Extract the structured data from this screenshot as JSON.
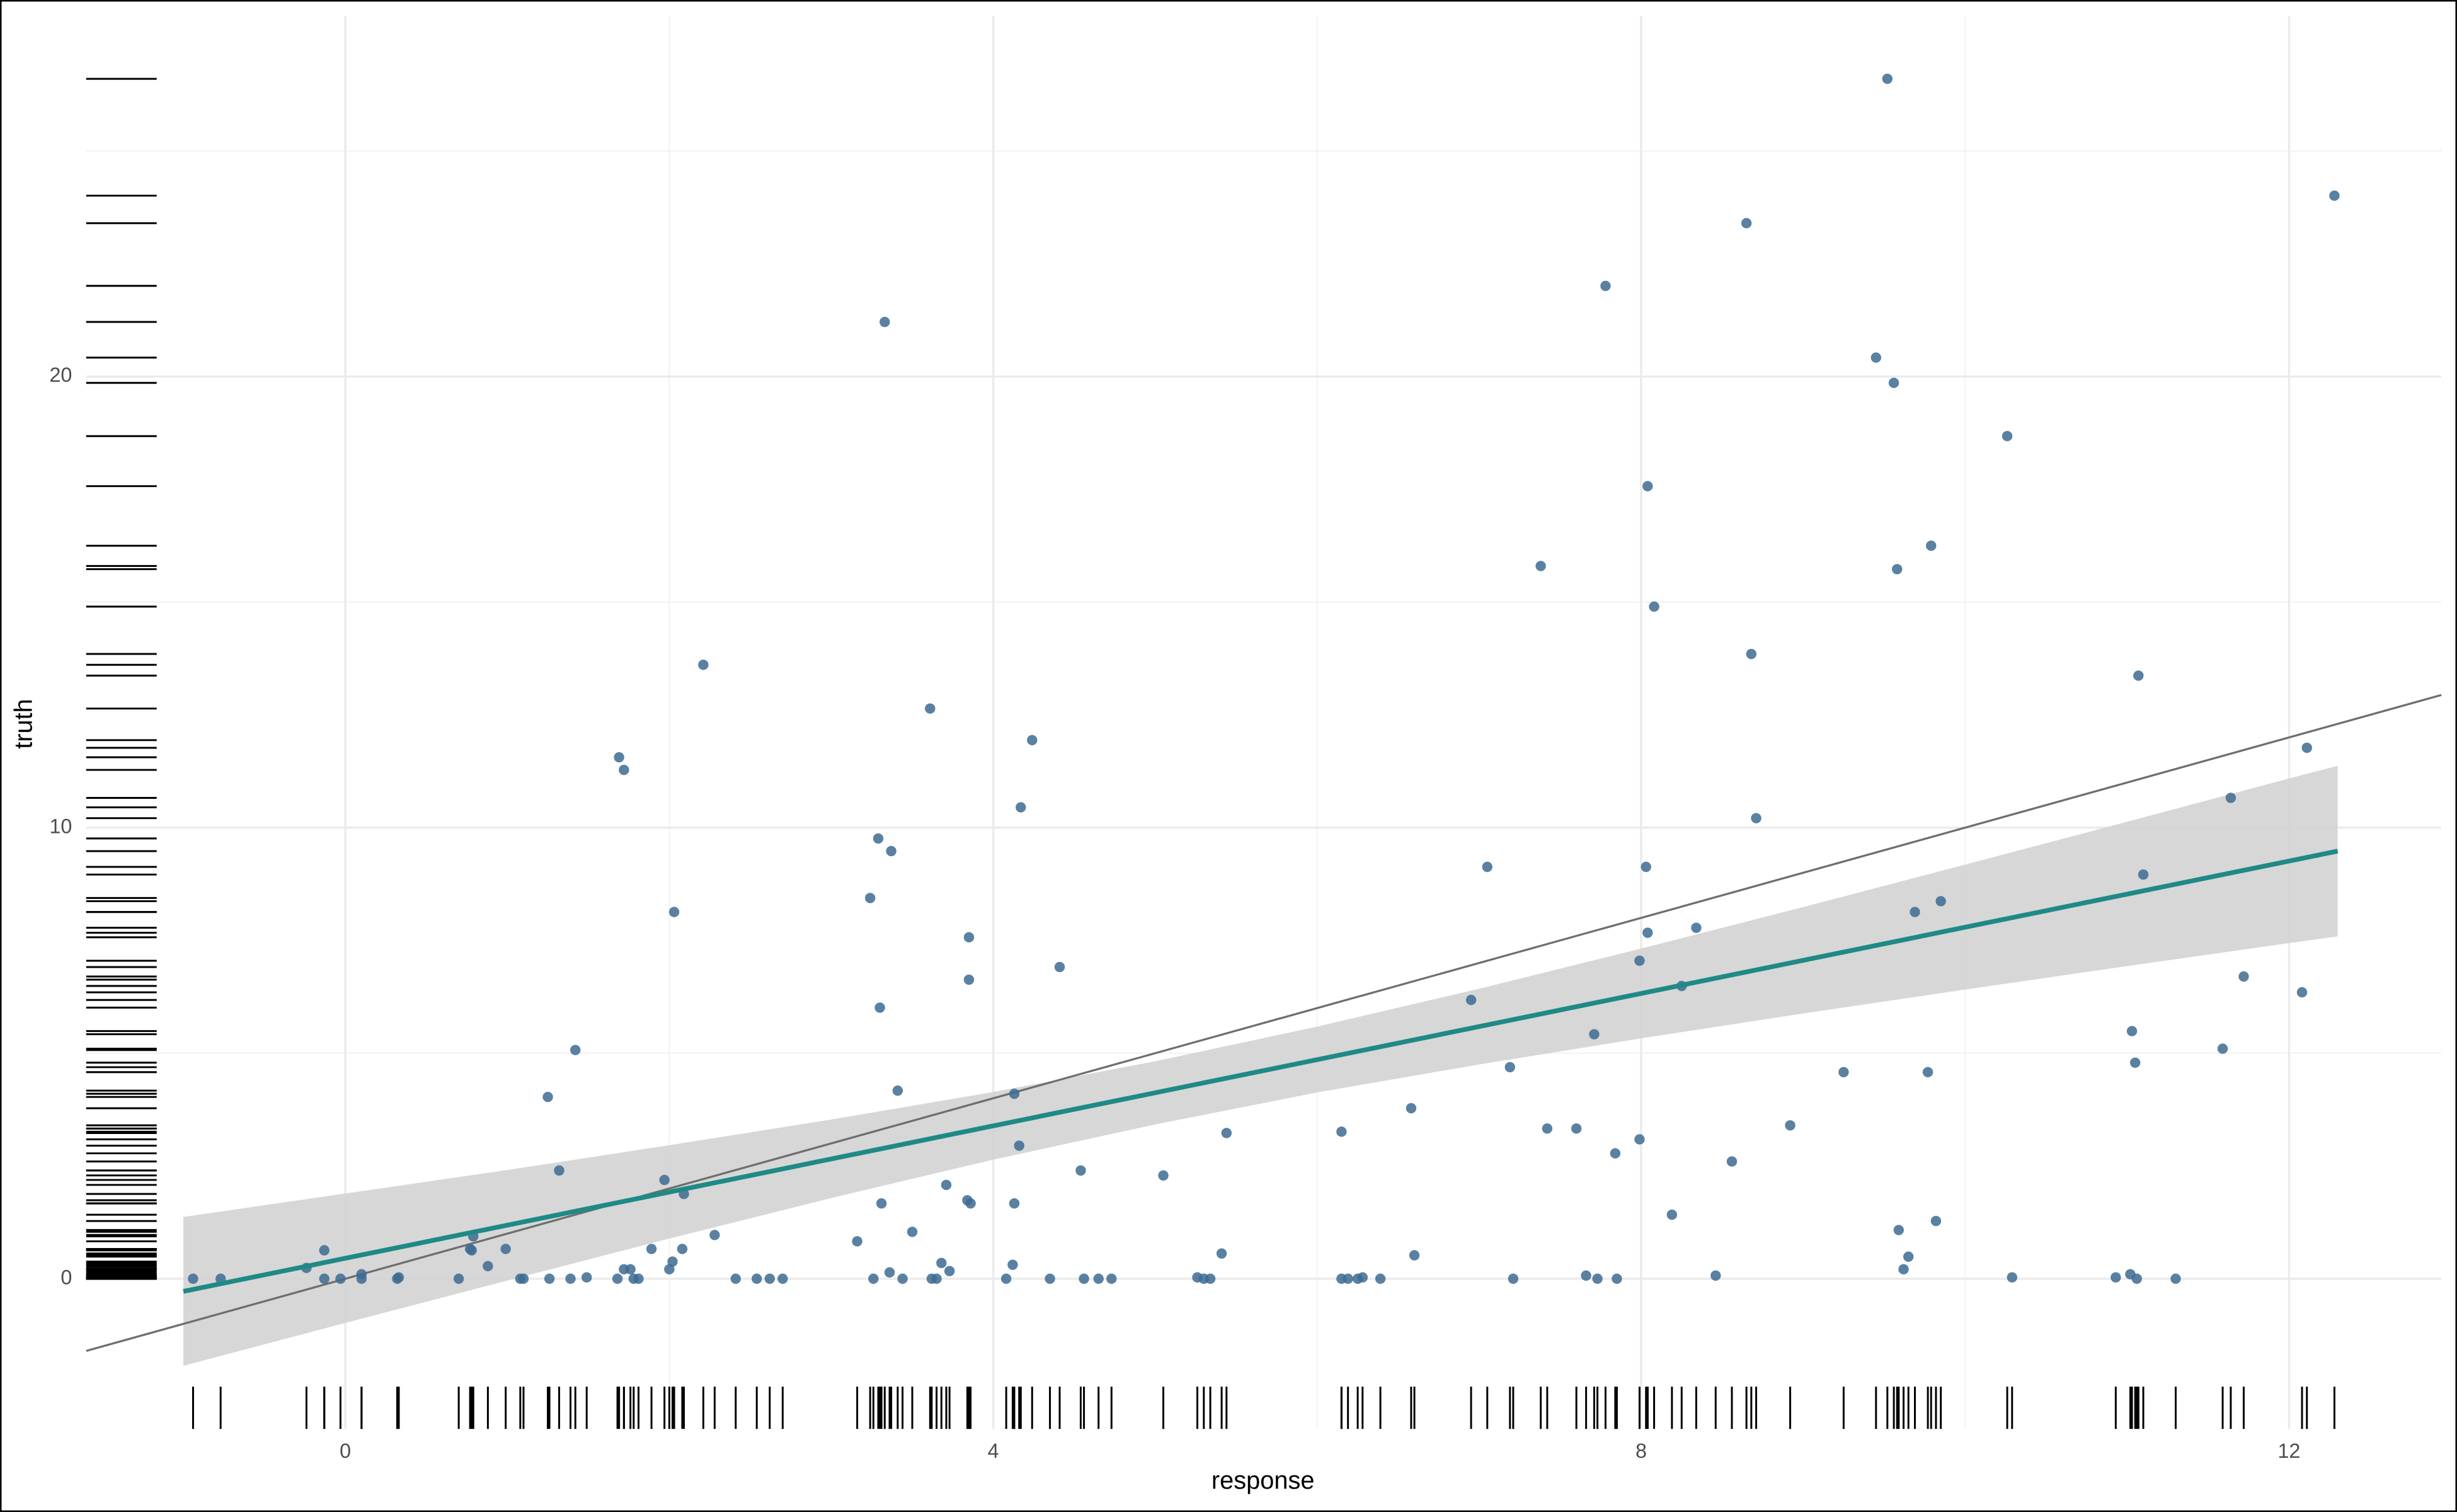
{
  "chart_data": {
    "type": "scatter",
    "x_label": "response",
    "y_label": "truth",
    "x": [
      -0.94,
      -0.77,
      -0.24,
      -0.13,
      -0.13,
      -0.03,
      0.1,
      0.1,
      0.32,
      0.33,
      0.7,
      0.77,
      0.79,
      0.78,
      0.88,
      0.99,
      1.08,
      1.1,
      1.25,
      1.26,
      1.32,
      1.39,
      1.42,
      1.49,
      1.68,
      1.69,
      1.72,
      1.72,
      1.76,
      1.78,
      1.81,
      1.89,
      1.97,
      2.0,
      2.02,
      2.03,
      2.08,
      2.09,
      2.21,
      2.28,
      2.41,
      2.54,
      2.62,
      2.7,
      3.16,
      3.24,
      3.26,
      3.29,
      3.3,
      3.31,
      3.33,
      3.36,
      3.37,
      3.41,
      3.44,
      3.5,
      3.61,
      3.62,
      3.65,
      3.68,
      3.71,
      3.73,
      3.84,
      3.85,
      3.85,
      3.86,
      4.08,
      4.12,
      4.13,
      4.13,
      4.16,
      4.17,
      4.24,
      4.35,
      4.41,
      4.54,
      4.56,
      4.65,
      4.73,
      5.05,
      5.26,
      5.3,
      5.34,
      5.41,
      5.44,
      6.15,
      6.15,
      6.19,
      6.25,
      6.28,
      6.39,
      6.58,
      6.6,
      6.95,
      7.05,
      7.19,
      7.21,
      7.38,
      7.42,
      7.6,
      7.66,
      7.71,
      7.73,
      7.78,
      7.84,
      7.85,
      7.99,
      7.99,
      8.03,
      8.04,
      8.04,
      8.08,
      8.19,
      8.25,
      8.34,
      8.46,
      8.56,
      8.65,
      8.68,
      8.71,
      8.92,
      9.25,
      9.45,
      9.52,
      9.56,
      9.58,
      9.59,
      9.62,
      9.65,
      9.69,
      9.77,
      9.79,
      9.82,
      9.85,
      10.26,
      10.29,
      10.93,
      11.02,
      11.03,
      11.05,
      11.06,
      11.07,
      11.1,
      11.3,
      11.59,
      11.64,
      11.72,
      12.08,
      12.11,
      12.28
    ],
    "values": [
      0,
      0,
      0.24,
      0.63,
      0,
      0,
      0,
      0.1,
      0,
      0.03,
      0,
      0.66,
      0.94,
      0.63,
      0.28,
      0.66,
      0,
      0,
      4.03,
      0,
      2.4,
      0,
      5.07,
      0.03,
      0,
      11.56,
      11.28,
      0.21,
      0.21,
      0,
      0,
      0.66,
      2.19,
      0.21,
      0.38,
      8.13,
      0.66,
      1.88,
      13.61,
      0.97,
      0,
      0,
      0,
      0,
      0.83,
      8.44,
      0,
      9.76,
      6.01,
      1.67,
      21.21,
      0.14,
      9.48,
      4.17,
      0,
      1.04,
      12.64,
      0,
      0,
      0.35,
      2.08,
      0.17,
      1.74,
      7.57,
      6.63,
      1.67,
      0,
      0.31,
      4.1,
      1.67,
      2.95,
      10.45,
      11.94,
      0,
      6.91,
      2.4,
      0,
      0,
      0,
      2.29,
      0.03,
      0,
      0,
      0.56,
      3.23,
      3.26,
      0,
      0,
      0,
      0.03,
      0,
      3.78,
      0.52,
      6.18,
      9.13,
      4.69,
      0,
      15.8,
      3.33,
      3.33,
      0.07,
      5.42,
      0,
      22.01,
      2.78,
      0,
      3.09,
      7.05,
      9.13,
      17.57,
      7.67,
      14.9,
      1.42,
      6.49,
      7.78,
      0.07,
      2.6,
      23.4,
      13.85,
      10.21,
      3.4,
      4.58,
      20.42,
      26.6,
      19.86,
      15.73,
      1.08,
      0.21,
      0.49,
      8.13,
      4.58,
      16.25,
      1.28,
      8.37,
      18.68,
      0.03,
      0.03,
      0.1,
      5.49,
      4.79,
      0,
      13.37,
      8.96,
      0,
      5.1,
      10.66,
      6.7,
      6.35,
      11.77,
      24.01
    ],
    "color": "#3d6b92",
    "fit": {
      "x": [
        -1.0,
        12.3
      ],
      "y": [
        -0.28,
        9.48
      ],
      "color": "#1f8a85"
    },
    "band": {
      "x": [
        -1,
        0,
        1,
        2,
        3,
        4,
        5,
        6,
        7,
        8,
        9,
        10,
        11,
        12,
        12.3
      ],
      "lower": [
        -1.93,
        -0.98,
        -0.04,
        0.89,
        1.79,
        2.64,
        3.42,
        4.13,
        4.75,
        5.33,
        5.88,
        6.41,
        6.93,
        7.44,
        7.59
      ],
      "upper": [
        1.37,
        1.89,
        2.41,
        2.96,
        3.53,
        4.14,
        4.82,
        5.59,
        6.43,
        7.32,
        8.24,
        9.18,
        10.13,
        11.09,
        11.37
      ],
      "color": "#d3d3d3"
    },
    "abline": {
      "slope": 1,
      "intercept": 0,
      "color": "#6e6e6e"
    },
    "rug": true,
    "xlim": [
      -1.6,
      12.94
    ],
    "ylim": [
      -3.33,
      28
    ],
    "xticks": [
      0,
      4,
      8,
      12
    ],
    "yticks": [
      0,
      10,
      20
    ],
    "xminor": [
      2,
      6,
      10
    ],
    "yminor": [
      5,
      15,
      25
    ],
    "grid": true
  }
}
